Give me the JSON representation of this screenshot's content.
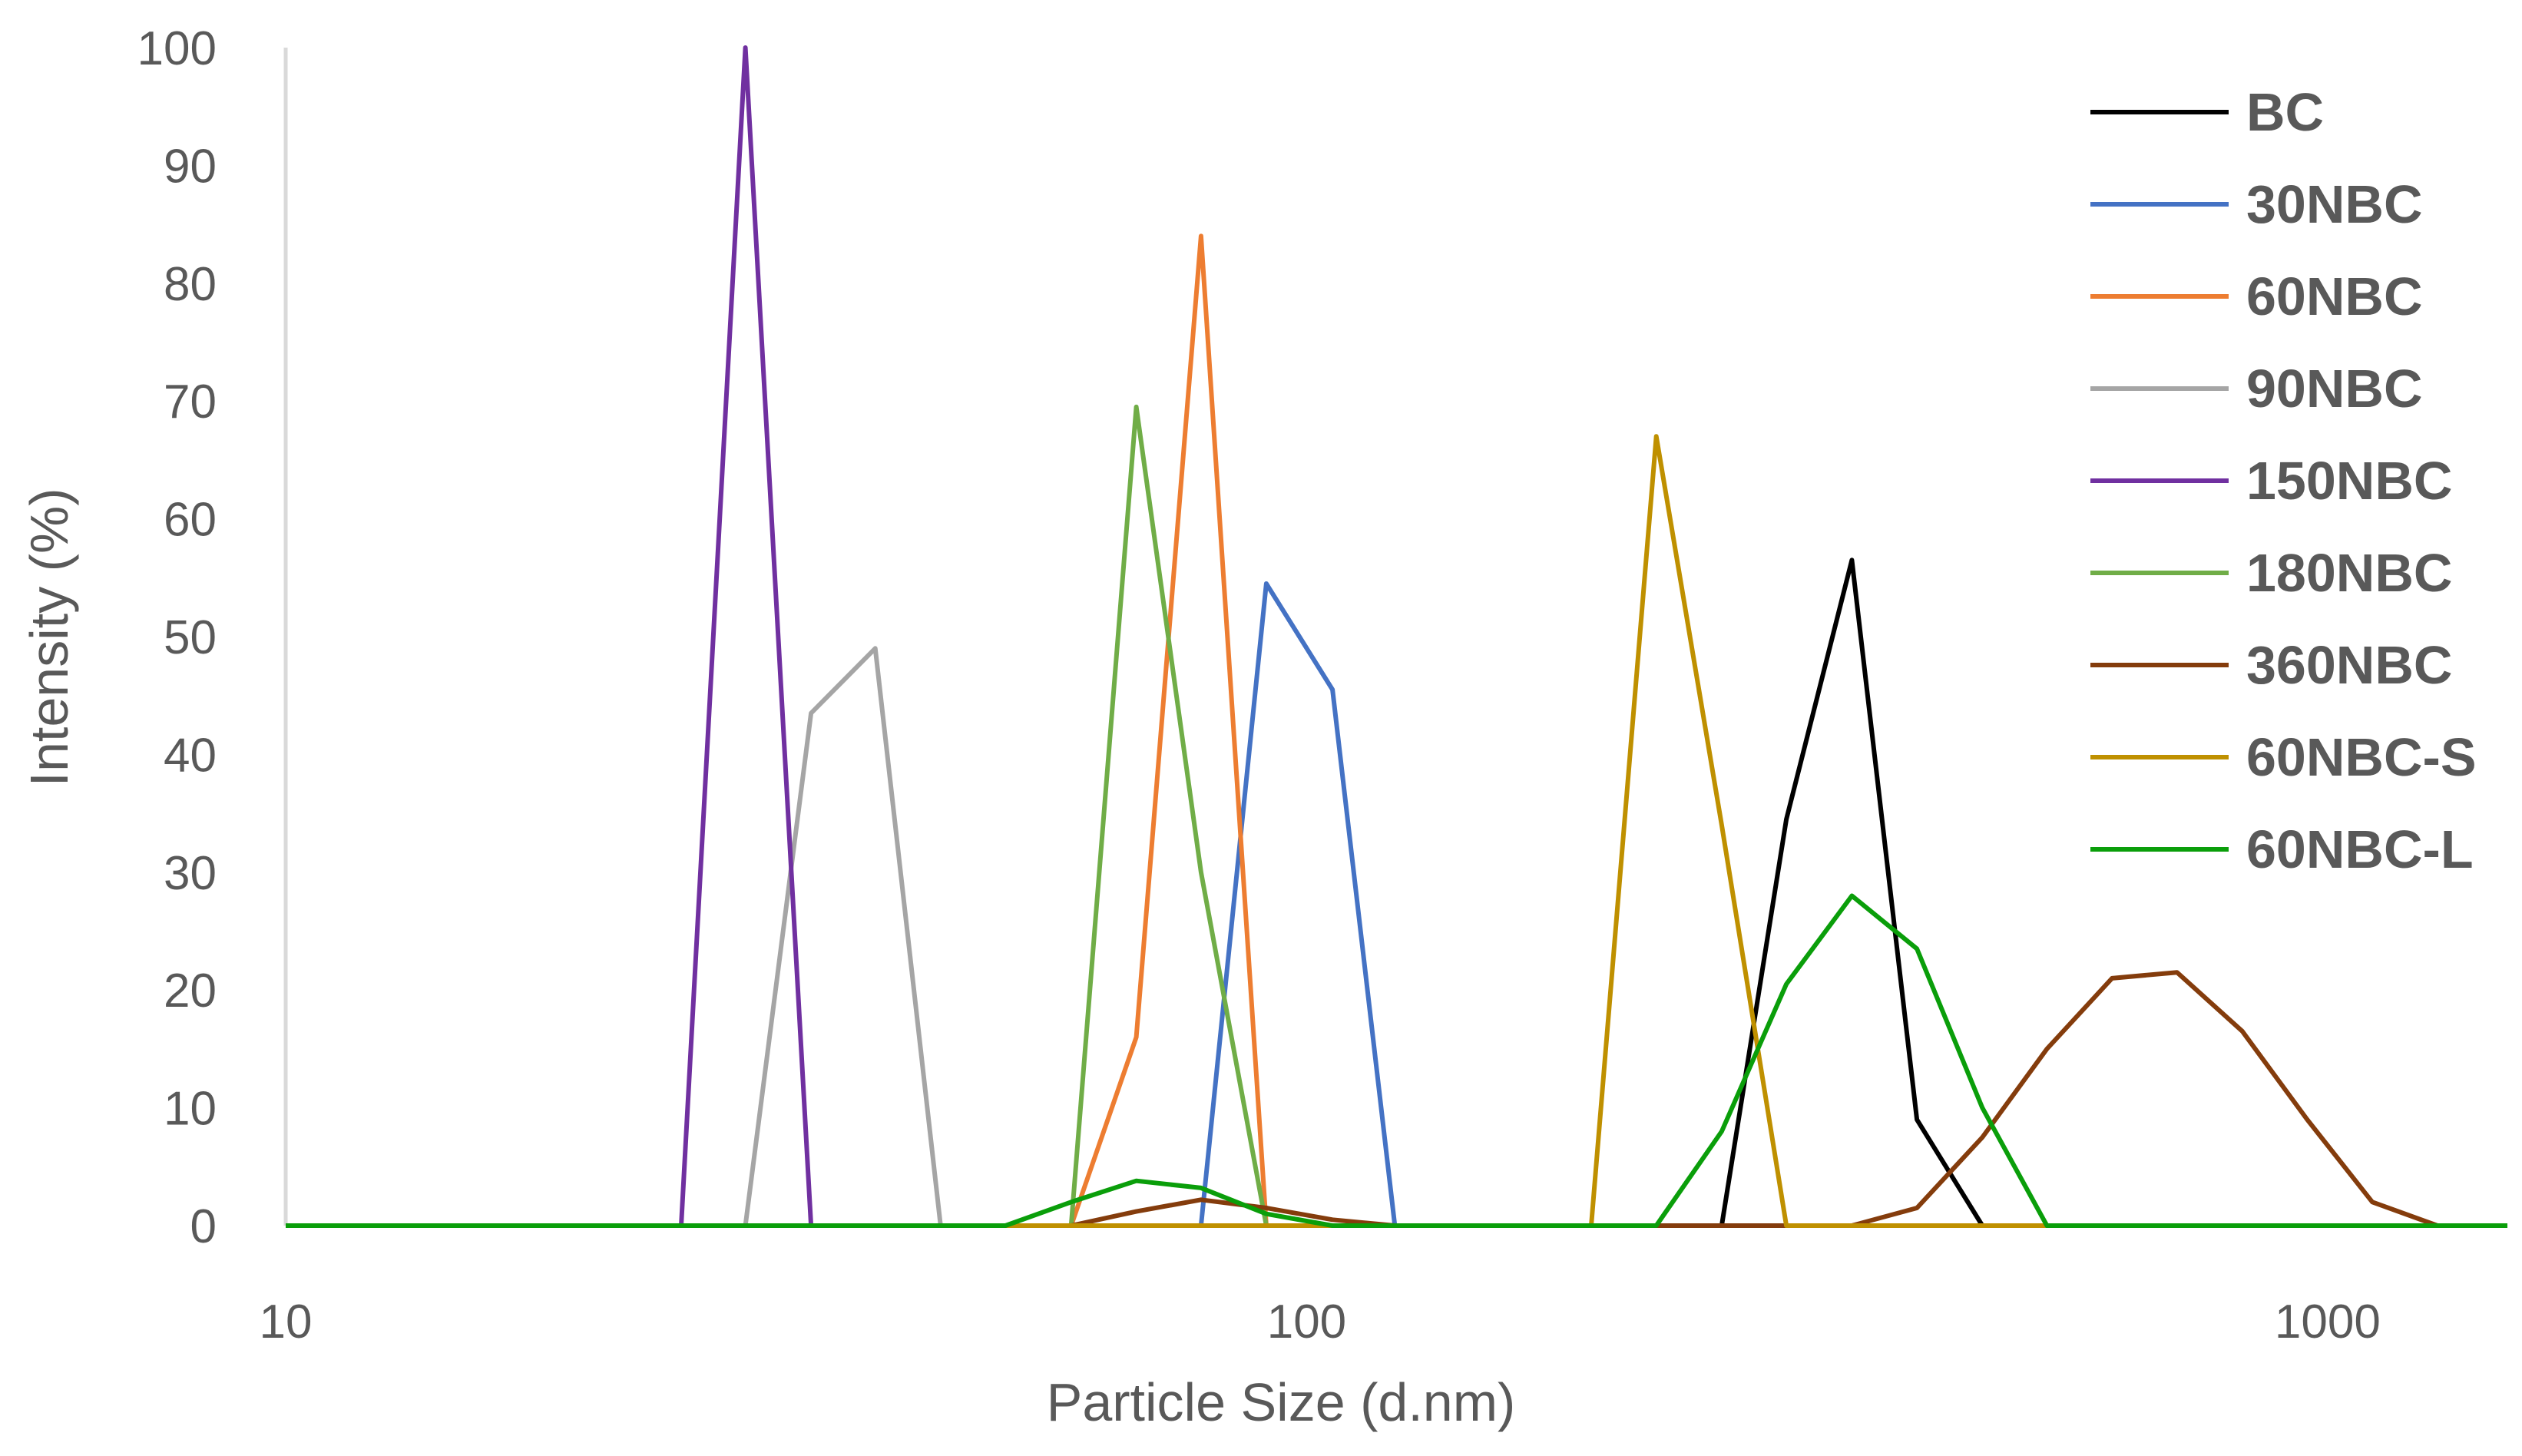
{
  "chart_data": {
    "type": "line",
    "title": "",
    "xlabel": "Particle Size (d.nm)",
    "ylabel": "Intensity (%)",
    "x_scale": "log",
    "xlim": [
      10,
      1500
    ],
    "ylim": [
      0,
      100
    ],
    "x_ticks": [
      10,
      100,
      1000
    ],
    "x_tick_labels": [
      "10",
      "100",
      "1000"
    ],
    "y_ticks": [
      0,
      10,
      20,
      30,
      40,
      50,
      60,
      70,
      80,
      90,
      100
    ],
    "y_tick_labels": [
      "0",
      "10",
      "20",
      "30",
      "40",
      "50",
      "60",
      "70",
      "80",
      "90",
      "100"
    ],
    "grid": false,
    "legend_position": "right",
    "series": [
      {
        "name": "BC",
        "color": "#000000",
        "x": [
          10,
          255,
          295,
          342,
          396,
          459,
          1500
        ],
        "y": [
          0,
          0,
          34.5,
          56.5,
          9,
          0,
          0
        ]
      },
      {
        "name": "30NBC",
        "color": "#4472C4",
        "x": [
          10,
          78.8,
          91.3,
          106,
          122,
          1500
        ],
        "y": [
          0,
          0,
          54.5,
          45.5,
          0,
          0
        ]
      },
      {
        "name": "60NBC",
        "color": "#ED7D31",
        "x": [
          10,
          58.8,
          68.1,
          78.8,
          91.3,
          1500
        ],
        "y": [
          0,
          0,
          16,
          84,
          0,
          0
        ]
      },
      {
        "name": "90NBC",
        "color": "#A5A5A5",
        "x": [
          10,
          28.2,
          32.7,
          37.8,
          43.8,
          1500
        ],
        "y": [
          0,
          0,
          43.5,
          49,
          0,
          0
        ]
      },
      {
        "name": "150NBC",
        "color": "#7030A0",
        "x": [
          10,
          24.4,
          28.2,
          32.7,
          1500
        ],
        "y": [
          0,
          0,
          100,
          0,
          0
        ]
      },
      {
        "name": "180NBC",
        "color": "#70AD47",
        "x": [
          10,
          58.8,
          68.1,
          78.8,
          91.3,
          1500
        ],
        "y": [
          0,
          0,
          69.5,
          30,
          0,
          0
        ]
      },
      {
        "name": "360NBC",
        "color": "#843C0C",
        "x": [
          10,
          58.8,
          68.1,
          78.8,
          91.3,
          106,
          122,
          342,
          396,
          459,
          531,
          615,
          712,
          825,
          955,
          1106,
          1281,
          1500
        ],
        "y": [
          0,
          0,
          1.2,
          2.2,
          1.5,
          0.5,
          0,
          0,
          1.5,
          7.5,
          15,
          21,
          21.5,
          16.5,
          9,
          2,
          0,
          0
        ]
      },
      {
        "name": "60NBC-S",
        "color": "#BF9000",
        "x": [
          10,
          190,
          220,
          255,
          295,
          1500
        ],
        "y": [
          0,
          0,
          67,
          34,
          0,
          0
        ]
      },
      {
        "name": "60NBC-L",
        "color": "#0A9E0A",
        "x": [
          10,
          50.7,
          58.8,
          68.1,
          78.8,
          91.3,
          106,
          220,
          255,
          295,
          342,
          396,
          459,
          531,
          1500
        ],
        "y": [
          0,
          0,
          2,
          3.8,
          3.2,
          1,
          0,
          0,
          8,
          20.5,
          28,
          23.5,
          10,
          0,
          0
        ]
      }
    ]
  }
}
